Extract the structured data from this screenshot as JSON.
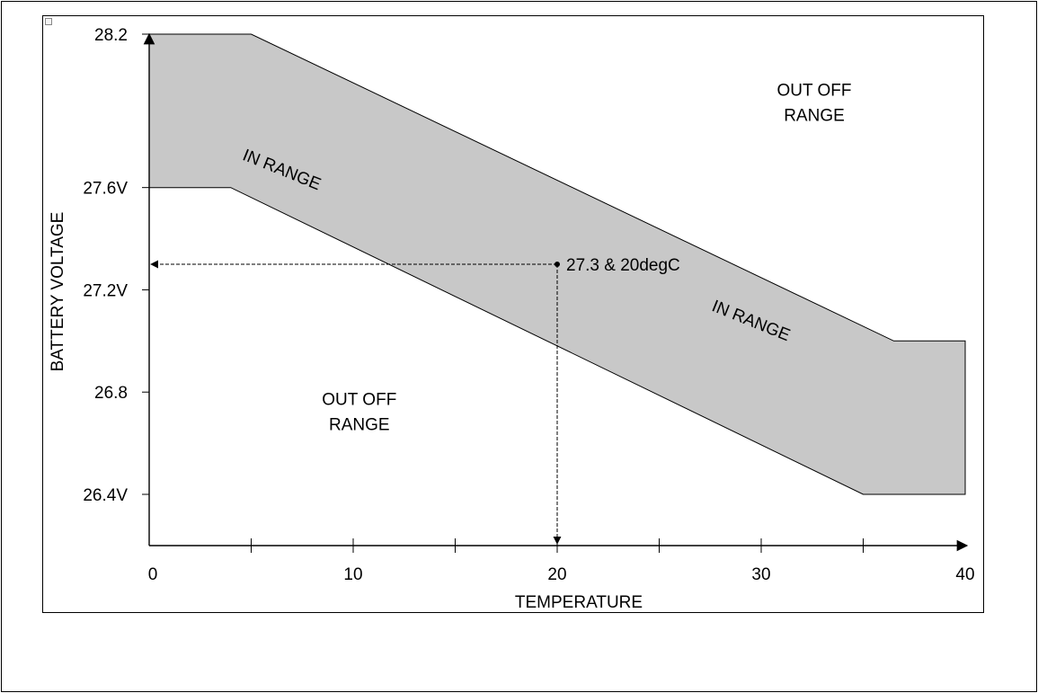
{
  "chart_data": {
    "type": "area",
    "xlabel": "TEMPERATURE",
    "ylabel": "BATTERY VOLTAGE",
    "xlim": [
      0,
      40
    ],
    "ylim": [
      26.4,
      28.2
    ],
    "x_ticks": [
      {
        "value": 0,
        "label": "0"
      },
      {
        "value": 10,
        "label": "10"
      },
      {
        "value": 20,
        "label": "20"
      },
      {
        "value": 30,
        "label": "30"
      },
      {
        "value": 40,
        "label": "40"
      }
    ],
    "x_minor_ticks": [
      5,
      15,
      25,
      35
    ],
    "y_ticks": [
      {
        "value": 28.2,
        "label": "28.2"
      },
      {
        "value": 27.6,
        "label": "27.6V"
      },
      {
        "value": 27.2,
        "label": "27.2V"
      },
      {
        "value": 26.8,
        "label": "26.8"
      },
      {
        "value": 26.4,
        "label": "26.4V"
      }
    ],
    "band": {
      "upper": [
        {
          "x": 0,
          "y": 28.2
        },
        {
          "x": 5,
          "y": 28.2
        },
        {
          "x": 36.5,
          "y": 27.0
        },
        {
          "x": 40,
          "y": 27.0
        }
      ],
      "lower": [
        {
          "x": 0,
          "y": 27.6
        },
        {
          "x": 4,
          "y": 27.6
        },
        {
          "x": 35,
          "y": 26.4
        },
        {
          "x": 40,
          "y": 26.4
        }
      ],
      "color": "#c8c8c8"
    },
    "marker": {
      "x": 20,
      "y": 27.3,
      "label": "27.3 & 20degC"
    },
    "annotations": [
      {
        "text": "IN RANGE",
        "x": 6.4,
        "y": 27.65,
        "rotate": 22
      },
      {
        "text": "IN RANGE",
        "x": 29.4,
        "y": 27.06,
        "rotate": 22
      }
    ],
    "region_labels": [
      {
        "lines": [
          "OUT OFF",
          "RANGE"
        ],
        "x": 32.6,
        "y": 27.96
      },
      {
        "lines": [
          "OUT OFF",
          "RANGE"
        ],
        "x": 10.3,
        "y": 26.75
      }
    ],
    "grid": false,
    "legend": "none"
  }
}
